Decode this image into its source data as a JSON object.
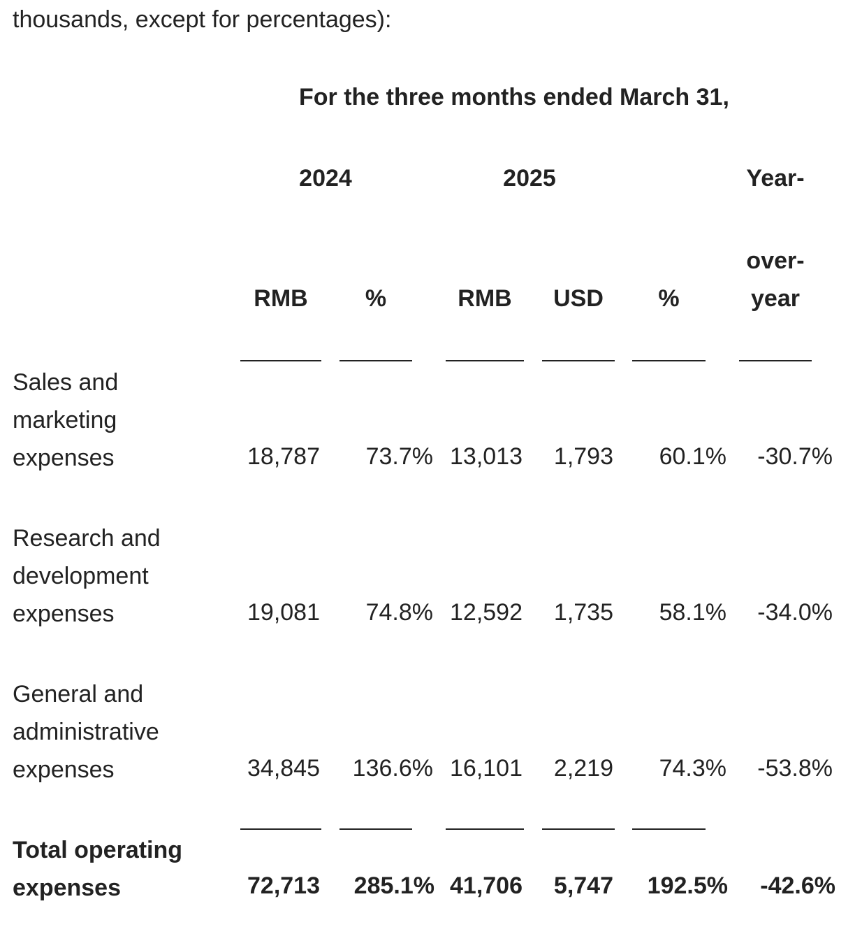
{
  "intro_text": "thousands, except for percentages):",
  "period_header": "For the three months ended March 31,",
  "year_headers": {
    "y2024": "2024",
    "y2025": "2025",
    "yoy_line1": "Year-",
    "yoy_line2": "over-",
    "yoy_line3": "year"
  },
  "column_headers": {
    "rmb_2024": "RMB",
    "pct_2024": "%",
    "rmb_2025": "RMB",
    "usd_2025": "USD",
    "pct_2025": "%"
  },
  "rows": [
    {
      "label_lines": [
        "Sales and",
        "marketing",
        "expenses"
      ],
      "values": [
        "18,787",
        "73.7%",
        "13,013",
        "1,793",
        "60.1%",
        "-30.7%"
      ]
    },
    {
      "label_lines": [
        "Research and",
        "development",
        "expenses"
      ],
      "values": [
        "19,081",
        "74.8%",
        "12,592",
        "1,735",
        "58.1%",
        "-34.0%"
      ]
    },
    {
      "label_lines": [
        "General and",
        "administrative",
        "expenses"
      ],
      "values": [
        "34,845",
        "136.6%",
        "16,101",
        "2,219",
        "74.3%",
        "-53.8%"
      ]
    }
  ],
  "total": {
    "label_lines": [
      "Total operating",
      "expenses"
    ],
    "values": [
      "72,713",
      "285.1%",
      "41,706",
      "5,747",
      "192.5%",
      "-42.6%"
    ]
  }
}
